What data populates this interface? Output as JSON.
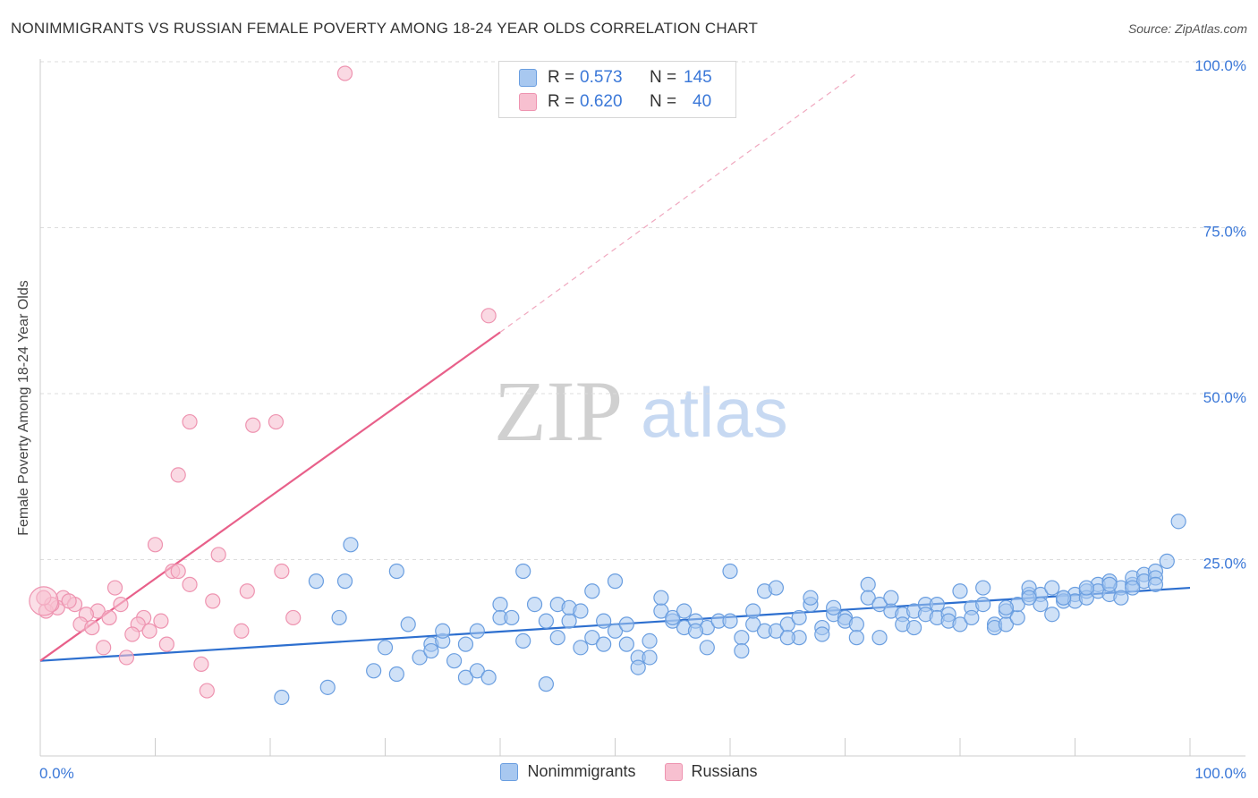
{
  "title": "NONIMMIGRANTS VS RUSSIAN FEMALE POVERTY AMONG 18-24 YEAR OLDS CORRELATION CHART",
  "source": "Source: ZipAtlas.com",
  "watermark": {
    "zip": "ZIP",
    "atlas": "atlas"
  },
  "legend_top": [
    {
      "r_label": "R =",
      "r_value": "0.573",
      "n_label": "N =",
      "n_value": "145"
    },
    {
      "r_label": "R =",
      "r_value": "0.620",
      "n_label": "N =",
      "n_value": "40"
    }
  ],
  "legend_bottom": [
    "Nonimmigrants",
    "Russians"
  ],
  "colors": {
    "blue_fill": "#a8c8f0",
    "blue_stroke": "#6a9ee0",
    "blue_line": "#2d6fcf",
    "pink_fill": "#f7c0d0",
    "pink_stroke": "#ee93b0",
    "pink_line": "#e8608a",
    "axis_text": "#3b78d8",
    "grid": "#dddddd"
  },
  "chart_data": {
    "type": "scatter",
    "title": "NONIMMIGRANTS VS RUSSIAN FEMALE POVERTY AMONG 18-24 YEAR OLDS CORRELATION CHART",
    "xlabel": "",
    "ylabel": "Female Poverty Among 18-24 Year Olds",
    "xlim": [
      0,
      100
    ],
    "ylim": [
      0,
      100
    ],
    "x_tick_labels": [
      "0.0%",
      "100.0%"
    ],
    "y_tick_labels": [
      "25.0%",
      "50.0%",
      "75.0%",
      "100.0%"
    ],
    "y_ticks": [
      25,
      50,
      75,
      100
    ],
    "grid": true,
    "series": [
      {
        "name": "Nonimmigrants",
        "r": 0.573,
        "n": 145,
        "trend": {
          "x": [
            0,
            100
          ],
          "y": [
            11.5,
            22.5
          ]
        },
        "points": [
          [
            21,
            6
          ],
          [
            25,
            7.5
          ],
          [
            27,
            29
          ],
          [
            26,
            18
          ],
          [
            24,
            23.5
          ],
          [
            29,
            10
          ],
          [
            30,
            13.5
          ],
          [
            31,
            25
          ],
          [
            31,
            9.5
          ],
          [
            32,
            17
          ],
          [
            33,
            12
          ],
          [
            34,
            14
          ],
          [
            35,
            14.5
          ],
          [
            35,
            16
          ],
          [
            36,
            11.5
          ],
          [
            37,
            14
          ],
          [
            37,
            9
          ],
          [
            38,
            16
          ],
          [
            38,
            10
          ],
          [
            39,
            9
          ],
          [
            40,
            20
          ],
          [
            40,
            18
          ],
          [
            41,
            18
          ],
          [
            42,
            25
          ],
          [
            42,
            14.5
          ],
          [
            43,
            20
          ],
          [
            44,
            17.5
          ],
          [
            45,
            20
          ],
          [
            45,
            15
          ],
          [
            46,
            17.5
          ],
          [
            46,
            19.5
          ],
          [
            47,
            13.5
          ],
          [
            48,
            15
          ],
          [
            48,
            22
          ],
          [
            49,
            14
          ],
          [
            49,
            17.5
          ],
          [
            50,
            16
          ],
          [
            50,
            23.5
          ],
          [
            51,
            14
          ],
          [
            51,
            17
          ],
          [
            52,
            12
          ],
          [
            52,
            10.5
          ],
          [
            53,
            14.5
          ],
          [
            54,
            19
          ],
          [
            54,
            21
          ],
          [
            55,
            17.5
          ],
          [
            55,
            18
          ],
          [
            56,
            16.5
          ],
          [
            56,
            19
          ],
          [
            57,
            17.5
          ],
          [
            58,
            13.5
          ],
          [
            58,
            16.5
          ],
          [
            59,
            17.5
          ],
          [
            60,
            25
          ],
          [
            60,
            17.5
          ],
          [
            61,
            15
          ],
          [
            62,
            17
          ],
          [
            62,
            19
          ],
          [
            63,
            16
          ],
          [
            63,
            22
          ],
          [
            64,
            16
          ],
          [
            64,
            22.5
          ],
          [
            65,
            17
          ],
          [
            66,
            18
          ],
          [
            66,
            15
          ],
          [
            67,
            20
          ],
          [
            68,
            16.5
          ],
          [
            68,
            15.5
          ],
          [
            69,
            18.5
          ],
          [
            70,
            18
          ],
          [
            70,
            17.5
          ],
          [
            71,
            17
          ],
          [
            72,
            23
          ],
          [
            72,
            21
          ],
          [
            73,
            20
          ],
          [
            73,
            15
          ],
          [
            74,
            19
          ],
          [
            75,
            18.5
          ],
          [
            75,
            17
          ],
          [
            76,
            19
          ],
          [
            77,
            20
          ],
          [
            77,
            18.5
          ],
          [
            78,
            20
          ],
          [
            78,
            18
          ],
          [
            79,
            18.5
          ],
          [
            79,
            17.5
          ],
          [
            80,
            17
          ],
          [
            80,
            22
          ],
          [
            81,
            19.5
          ],
          [
            82,
            22.5
          ],
          [
            82,
            20
          ],
          [
            83,
            17
          ],
          [
            83,
            16.5
          ],
          [
            84,
            17
          ],
          [
            84,
            19
          ],
          [
            85,
            18
          ],
          [
            85,
            20
          ],
          [
            86,
            21.5
          ],
          [
            86,
            22.5
          ],
          [
            87,
            21.5
          ],
          [
            87,
            20
          ],
          [
            88,
            18.5
          ],
          [
            88,
            22.5
          ],
          [
            89,
            21
          ],
          [
            89,
            20.5
          ],
          [
            90,
            21.5
          ],
          [
            90,
            20.5
          ],
          [
            91,
            22
          ],
          [
            91,
            21
          ],
          [
            92,
            23
          ],
          [
            92,
            22
          ],
          [
            93,
            23.5
          ],
          [
            93,
            21.5
          ],
          [
            94,
            22.5
          ],
          [
            94,
            21
          ],
          [
            95,
            23
          ],
          [
            95,
            24
          ],
          [
            96,
            24.5
          ],
          [
            96,
            23.5
          ],
          [
            97,
            25
          ],
          [
            97,
            24
          ],
          [
            98,
            26.5
          ],
          [
            99,
            32.5
          ],
          [
            26.5,
            23.5
          ],
          [
            34,
            13
          ],
          [
            44,
            8
          ],
          [
            47,
            19
          ],
          [
            53,
            12
          ],
          [
            57,
            16
          ],
          [
            61,
            13
          ],
          [
            65,
            15
          ],
          [
            67,
            21
          ],
          [
            69,
            19.5
          ],
          [
            71,
            15
          ],
          [
            74,
            21
          ],
          [
            76,
            16.5
          ],
          [
            81,
            18
          ],
          [
            84,
            19.5
          ],
          [
            86,
            21
          ],
          [
            89,
            21
          ],
          [
            91,
            22.5
          ],
          [
            93,
            23
          ],
          [
            95,
            22.5
          ],
          [
            97,
            23
          ]
        ]
      },
      {
        "name": "Russians",
        "r": 0.62,
        "n": 40,
        "trend": {
          "x": [
            0,
            40
          ],
          "y": [
            11.5,
            61
          ]
        },
        "trend_dashed": {
          "x": [
            40,
            71
          ],
          "y": [
            61,
            100
          ]
        },
        "points": [
          [
            26.5,
            100
          ],
          [
            39,
            63.5
          ],
          [
            13,
            47.5
          ],
          [
            18.5,
            47
          ],
          [
            20.5,
            47.5
          ],
          [
            12,
            39.5
          ],
          [
            10,
            29
          ],
          [
            15.5,
            27.5
          ],
          [
            11.5,
            25
          ],
          [
            21,
            25
          ],
          [
            13,
            23
          ],
          [
            6.5,
            22.5
          ],
          [
            2,
            21
          ],
          [
            3,
            20
          ],
          [
            5,
            19
          ],
          [
            7,
            20
          ],
          [
            1.5,
            19.5
          ],
          [
            0.5,
            19
          ],
          [
            4,
            18.5
          ],
          [
            6,
            18
          ],
          [
            9,
            18
          ],
          [
            10.5,
            17.5
          ],
          [
            8.5,
            17
          ],
          [
            3.5,
            17
          ],
          [
            4.5,
            16.5
          ],
          [
            8,
            15.5
          ],
          [
            17.5,
            16
          ],
          [
            9.5,
            16
          ],
          [
            11,
            14
          ],
          [
            5.5,
            13.5
          ],
          [
            7.5,
            12
          ],
          [
            14,
            11
          ],
          [
            14.5,
            7
          ],
          [
            1,
            20
          ],
          [
            2.5,
            20.5
          ],
          [
            0.3,
            21
          ],
          [
            12,
            25
          ],
          [
            15,
            20.5
          ],
          [
            18,
            22
          ],
          [
            22,
            18
          ]
        ]
      }
    ]
  }
}
